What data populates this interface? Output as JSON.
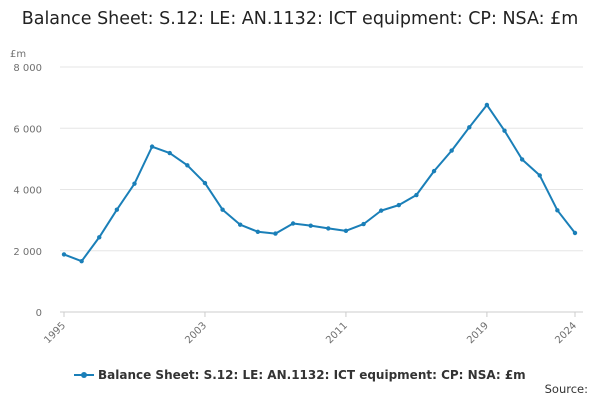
{
  "title": "Balance Sheet: S.12: LE: AN.1132: ICT equipment: CP: NSA: £m",
  "y_unit": "£m",
  "source_label": "Source:",
  "colors": {
    "series": "#1a7fb8",
    "grid": "#e6e6e6",
    "axis": "#cccccc",
    "tick": "#707070"
  },
  "chart_data": {
    "type": "line",
    "title": "Balance Sheet: S.12: LE: AN.1132: ICT equipment: CP: NSA: £m",
    "xlabel": "",
    "ylabel": "£m",
    "ylim": [
      0,
      8000
    ],
    "xlim": [
      1995,
      2024
    ],
    "yticks": [
      0,
      2000,
      4000,
      6000,
      8000
    ],
    "ytick_labels": [
      "0",
      "2 000",
      "4 000",
      "6 000",
      "8 000"
    ],
    "xticks": [
      1995,
      2003,
      2011,
      2019,
      2024
    ],
    "xtick_labels": [
      "1995",
      "2003",
      "2011",
      "2019",
      "2024"
    ],
    "grid": true,
    "legend_position": "bottom",
    "series": [
      {
        "name": "Balance Sheet: S.12: LE: AN.1132: ICT equipment: CP: NSA: £m",
        "x": [
          1995,
          1996,
          1997,
          1998,
          1999,
          2000,
          2001,
          2002,
          2003,
          2004,
          2005,
          2006,
          2007,
          2008,
          2009,
          2010,
          2011,
          2012,
          2013,
          2014,
          2015,
          2016,
          2017,
          2018,
          2019,
          2020,
          2021,
          2022,
          2023,
          2024
        ],
        "values": [
          1880,
          1660,
          2440,
          3340,
          4190,
          5400,
          5190,
          4790,
          4210,
          3340,
          2850,
          2620,
          2560,
          2890,
          2820,
          2730,
          2650,
          2870,
          3310,
          3490,
          3820,
          4600,
          5270,
          6030,
          6760,
          5920,
          4980,
          4460,
          3320,
          2580
        ]
      }
    ]
  }
}
